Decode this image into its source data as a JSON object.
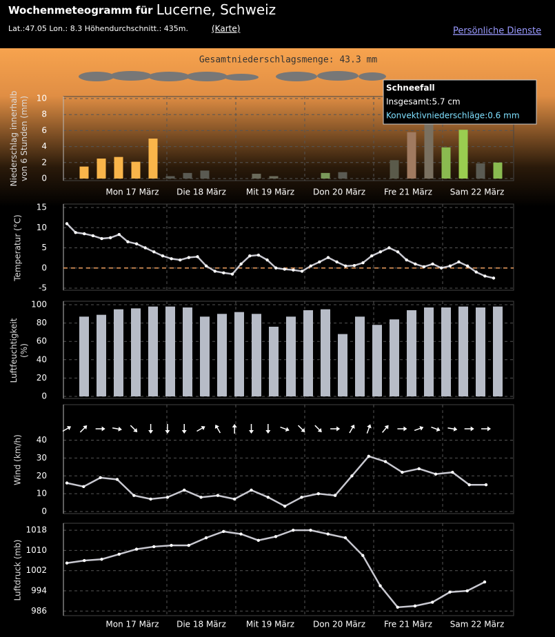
{
  "header": {
    "title_prefix": "Wochenmeteogramm für",
    "location": "Lucerne, Schweiz",
    "coordinates": "Lat.:47.05 Lon.: 8.3 Höhendurchschnitt.: 435m.",
    "map_link": "(Karte)",
    "services_link": "Persönliche Dienste"
  },
  "days": [
    "Mon 17 März",
    "Die 18 März",
    "Mit 19 März",
    "Don 20 März",
    "Fre 21 März",
    "Sam 22 März"
  ],
  "chart_data": [
    {
      "type": "bar",
      "title": "Gesamtniederschlagsmenge: 43.3 mm",
      "ylabel": [
        "Niederschlag innerhalb",
        "von 6 Stunden (mm)"
      ],
      "values": [
        1.5,
        2.5,
        2.7,
        2.1,
        5.0,
        0.3,
        0.7,
        1.0,
        0,
        0,
        0.6,
        0.3,
        0,
        0,
        0.7,
        0.8,
        0,
        0,
        2.3,
        5.8,
        7.0,
        3.9,
        6.1,
        1.9,
        2.0
      ],
      "colors": [
        "#f9b54a",
        "#f9b54a",
        "#f9b54a",
        "#f9b54a",
        "#f9b54a",
        "#5a5a52",
        "#5a5a52",
        "#5a5a52",
        "#555555",
        "#555555",
        "#6a6a5a",
        "#6a6a5a",
        "#555555",
        "#555555",
        "#7a9a5a",
        "#5a5a52",
        "#555555",
        "#555555",
        "#5a5a4a",
        "#a07a60",
        "#7a7060",
        "#8aba50",
        "#9acd50",
        "#5a5a52",
        "#8aba50"
      ],
      "ylim": [
        0,
        10
      ],
      "yticks": [
        0,
        2,
        4,
        6,
        8,
        10
      ],
      "grid": true,
      "tooltip": {
        "title": "Schneefall",
        "lines": [
          "Insgesamt:5.7 cm",
          "Konvektivniederschläge:0.6 mm"
        ]
      }
    },
    {
      "type": "line",
      "ylabel": [
        "Temperatur (°C)"
      ],
      "color": "#c8c8d0",
      "zero_line": true,
      "values": [
        11,
        8.8,
        8.5,
        8,
        7.3,
        7.5,
        8.3,
        6.5,
        6,
        5,
        4,
        3,
        2.3,
        2,
        2.6,
        2.8,
        0.5,
        -0.8,
        -1.2,
        -1.5,
        1,
        3,
        3.2,
        2,
        0,
        -0.3,
        -0.5,
        -0.8,
        0.5,
        1.5,
        2.6,
        1.5,
        0.5,
        0.6,
        1.3,
        3,
        4,
        5,
        4,
        2,
        1,
        0.3,
        1,
        0,
        0.5,
        1.5,
        0.5,
        -1,
        -2,
        -2.5
      ],
      "ylim": [
        -5,
        15
      ],
      "yticks": [
        -5,
        0,
        5,
        10,
        15
      ],
      "grid": true
    },
    {
      "type": "bar",
      "ylabel": [
        "Luftfeuchtigkeit",
        "(%)"
      ],
      "color": "#b7bcc7",
      "values": [
        87,
        89,
        95,
        96,
        98,
        98,
        97,
        87,
        90,
        92,
        90,
        76,
        87,
        94,
        95,
        68,
        87,
        78,
        84,
        94,
        97,
        97,
        98,
        97,
        98
      ],
      "ylim": [
        0,
        100
      ],
      "yticks": [
        0,
        20,
        40,
        60,
        80,
        100
      ],
      "grid": true
    },
    {
      "type": "line",
      "ylabel": [
        "Wind (km/h)"
      ],
      "color": "#c8c8d0",
      "values": [
        16,
        14,
        19,
        18,
        9,
        7,
        8,
        12,
        8,
        9,
        7,
        12,
        8,
        3,
        8,
        10,
        9,
        20,
        31,
        28,
        22,
        24,
        21,
        22,
        15,
        15
      ],
      "directions": [
        60,
        45,
        90,
        100,
        135,
        180,
        180,
        180,
        60,
        330,
        0,
        180,
        180,
        110,
        135,
        135,
        90,
        30,
        20,
        40,
        90,
        70,
        110,
        100,
        90,
        90
      ],
      "ylim": [
        0,
        58
      ],
      "yticks": [
        0,
        10,
        20,
        30,
        40
      ],
      "grid": true
    },
    {
      "type": "line",
      "ylabel": [
        "Luftdruck (mb)"
      ],
      "color": "#c8c8d0",
      "values": [
        1005,
        1006,
        1006.5,
        1008.5,
        1010.5,
        1011.5,
        1012,
        1012,
        1015,
        1017.5,
        1016.5,
        1014,
        1015.5,
        1018,
        1018,
        1016.5,
        1015,
        1008,
        996,
        987.5,
        988,
        989.5,
        993.5,
        994,
        997.5
      ],
      "ylim": [
        985,
        1019.4
      ],
      "yticks": [
        986,
        994,
        1002,
        1010,
        1018
      ],
      "grid": true
    }
  ]
}
